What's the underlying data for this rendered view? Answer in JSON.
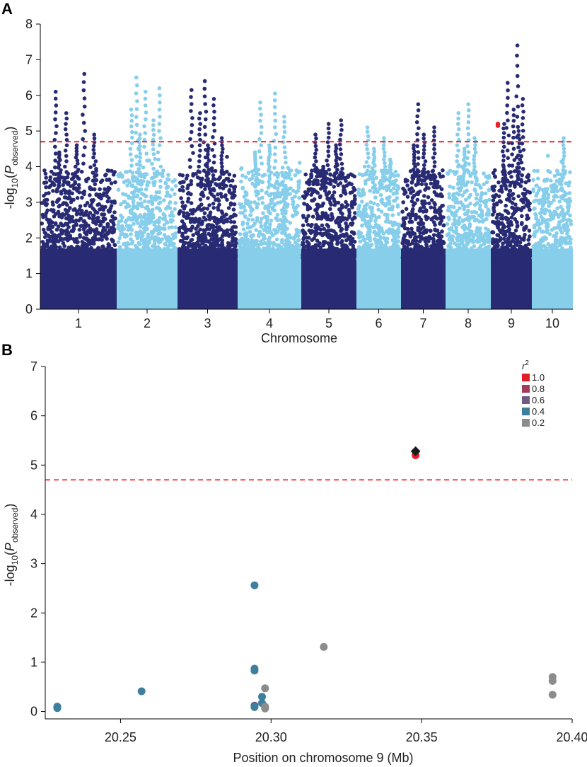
{
  "colors": {
    "dark": "#282b73",
    "light": "#87ceeb",
    "threshold": "#e8232b",
    "lead_snp": "#1a1a1a",
    "r2_1.0": "#e01f2b",
    "r2_0.8": "#a43a5e",
    "r2_0.6": "#6e5a82",
    "r2_0.4": "#3e7f9e",
    "r2_0.2": "#8c8c8c"
  },
  "chart_data": [
    {
      "panel": "A",
      "type": "scatter",
      "title": "",
      "xlabel": "Chromosome",
      "ylabel_base": "-log",
      "ylabel_sub": "10",
      "ylabel_open": "(",
      "ylabel_p": "P",
      "ylabel_p_sub": "observed",
      "ylabel_close": ")",
      "ylim": [
        0,
        8
      ],
      "yticks": [
        "0",
        "1",
        "2",
        "3",
        "4",
        "5",
        "6",
        "7",
        "8"
      ],
      "threshold": 4.7,
      "grid": false,
      "chromosomes": [
        {
          "label": "1",
          "color": "dark",
          "peaks": [
            6.1,
            6.6,
            5.5,
            4.9,
            4.6,
            4.4
          ]
        },
        {
          "label": "2",
          "color": "light",
          "peaks": [
            6.5,
            6.2,
            6.1,
            5.6,
            5.3,
            4.9
          ]
        },
        {
          "label": "3",
          "color": "dark",
          "peaks": [
            6.4,
            6.15,
            5.9,
            5.5,
            4.8,
            4.6
          ]
        },
        {
          "label": "4",
          "color": "light",
          "peaks": [
            6.05,
            5.8,
            5.4,
            4.6,
            4.4
          ]
        },
        {
          "label": "5",
          "color": "dark",
          "peaks": [
            5.3,
            5.2,
            4.9,
            4.6,
            4.0
          ]
        },
        {
          "label": "6",
          "color": "light",
          "peaks": [
            5.1,
            4.8,
            4.5,
            4.2
          ]
        },
        {
          "label": "7",
          "color": "dark",
          "peaks": [
            5.75,
            5.1,
            4.9,
            4.6
          ]
        },
        {
          "label": "8",
          "color": "light",
          "peaks": [
            5.75,
            5.5,
            4.8,
            4.5
          ]
        },
        {
          "label": "9",
          "color": "dark",
          "peaks": [
            7.4,
            6.35,
            5.9,
            5.6,
            5.2,
            5.0
          ]
        },
        {
          "label": "10",
          "color": "light",
          "peaks": [
            4.8,
            3.3,
            3.0
          ]
        }
      ],
      "highlight_points": [
        {
          "chromosome": "9",
          "y": 5.2,
          "color": "threshold"
        },
        {
          "chromosome": "9",
          "y": 5.15,
          "color": "threshold"
        }
      ]
    },
    {
      "panel": "B",
      "type": "scatter",
      "title": "",
      "xlabel": "Position on chromosome 9 (Mb)",
      "ylabel_base": "-log",
      "ylabel_sub": "10",
      "ylabel_open": "(",
      "ylabel_p": "P",
      "ylabel_p_sub": "observed",
      "ylabel_close": ")",
      "xlim": [
        20.225,
        20.4
      ],
      "ylim": [
        -0.15,
        7
      ],
      "xticks": [
        "20.25",
        "20.30",
        "20.35",
        "20.40"
      ],
      "yticks": [
        "0",
        "1",
        "2",
        "3",
        "4",
        "5",
        "6",
        "7"
      ],
      "threshold": 4.7,
      "grid": false,
      "legend": {
        "title": "r",
        "title_sup": "2",
        "position": "top-right",
        "entries": [
          {
            "label": "1.0",
            "color": "r2_1.0"
          },
          {
            "label": "0.8",
            "color": "r2_0.8"
          },
          {
            "label": "0.6",
            "color": "r2_0.6"
          },
          {
            "label": "0.4",
            "color": "r2_0.4"
          },
          {
            "label": "0.2",
            "color": "r2_0.2"
          }
        ]
      },
      "lead_snp": {
        "x": 20.348,
        "y": 5.28,
        "shape": "diamond"
      },
      "points": [
        {
          "x": 20.348,
          "y": 5.2,
          "r2": "1.0"
        },
        {
          "x": 20.229,
          "y": 0.1,
          "r2": "0.4"
        },
        {
          "x": 20.229,
          "y": 0.07,
          "r2": "0.4"
        },
        {
          "x": 20.257,
          "y": 0.41,
          "r2": "0.4"
        },
        {
          "x": 20.2945,
          "y": 2.56,
          "r2": "0.4"
        },
        {
          "x": 20.2945,
          "y": 0.87,
          "r2": "0.4"
        },
        {
          "x": 20.2945,
          "y": 0.83,
          "r2": "0.4"
        },
        {
          "x": 20.2945,
          "y": 0.12,
          "r2": "0.6"
        },
        {
          "x": 20.2945,
          "y": 0.09,
          "r2": "0.4"
        },
        {
          "x": 20.297,
          "y": 0.3,
          "r2": "0.4"
        },
        {
          "x": 20.297,
          "y": 0.17,
          "r2": "0.4"
        },
        {
          "x": 20.298,
          "y": 0.47,
          "r2": "0.2"
        },
        {
          "x": 20.298,
          "y": 0.1,
          "r2": "0.2"
        },
        {
          "x": 20.298,
          "y": 0.06,
          "r2": "0.2"
        },
        {
          "x": 20.3175,
          "y": 1.31,
          "r2": "0.2"
        },
        {
          "x": 20.3935,
          "y": 0.7,
          "r2": "0.2"
        },
        {
          "x": 20.3935,
          "y": 0.62,
          "r2": "0.2"
        },
        {
          "x": 20.3935,
          "y": 0.34,
          "r2": "0.2"
        }
      ]
    }
  ]
}
